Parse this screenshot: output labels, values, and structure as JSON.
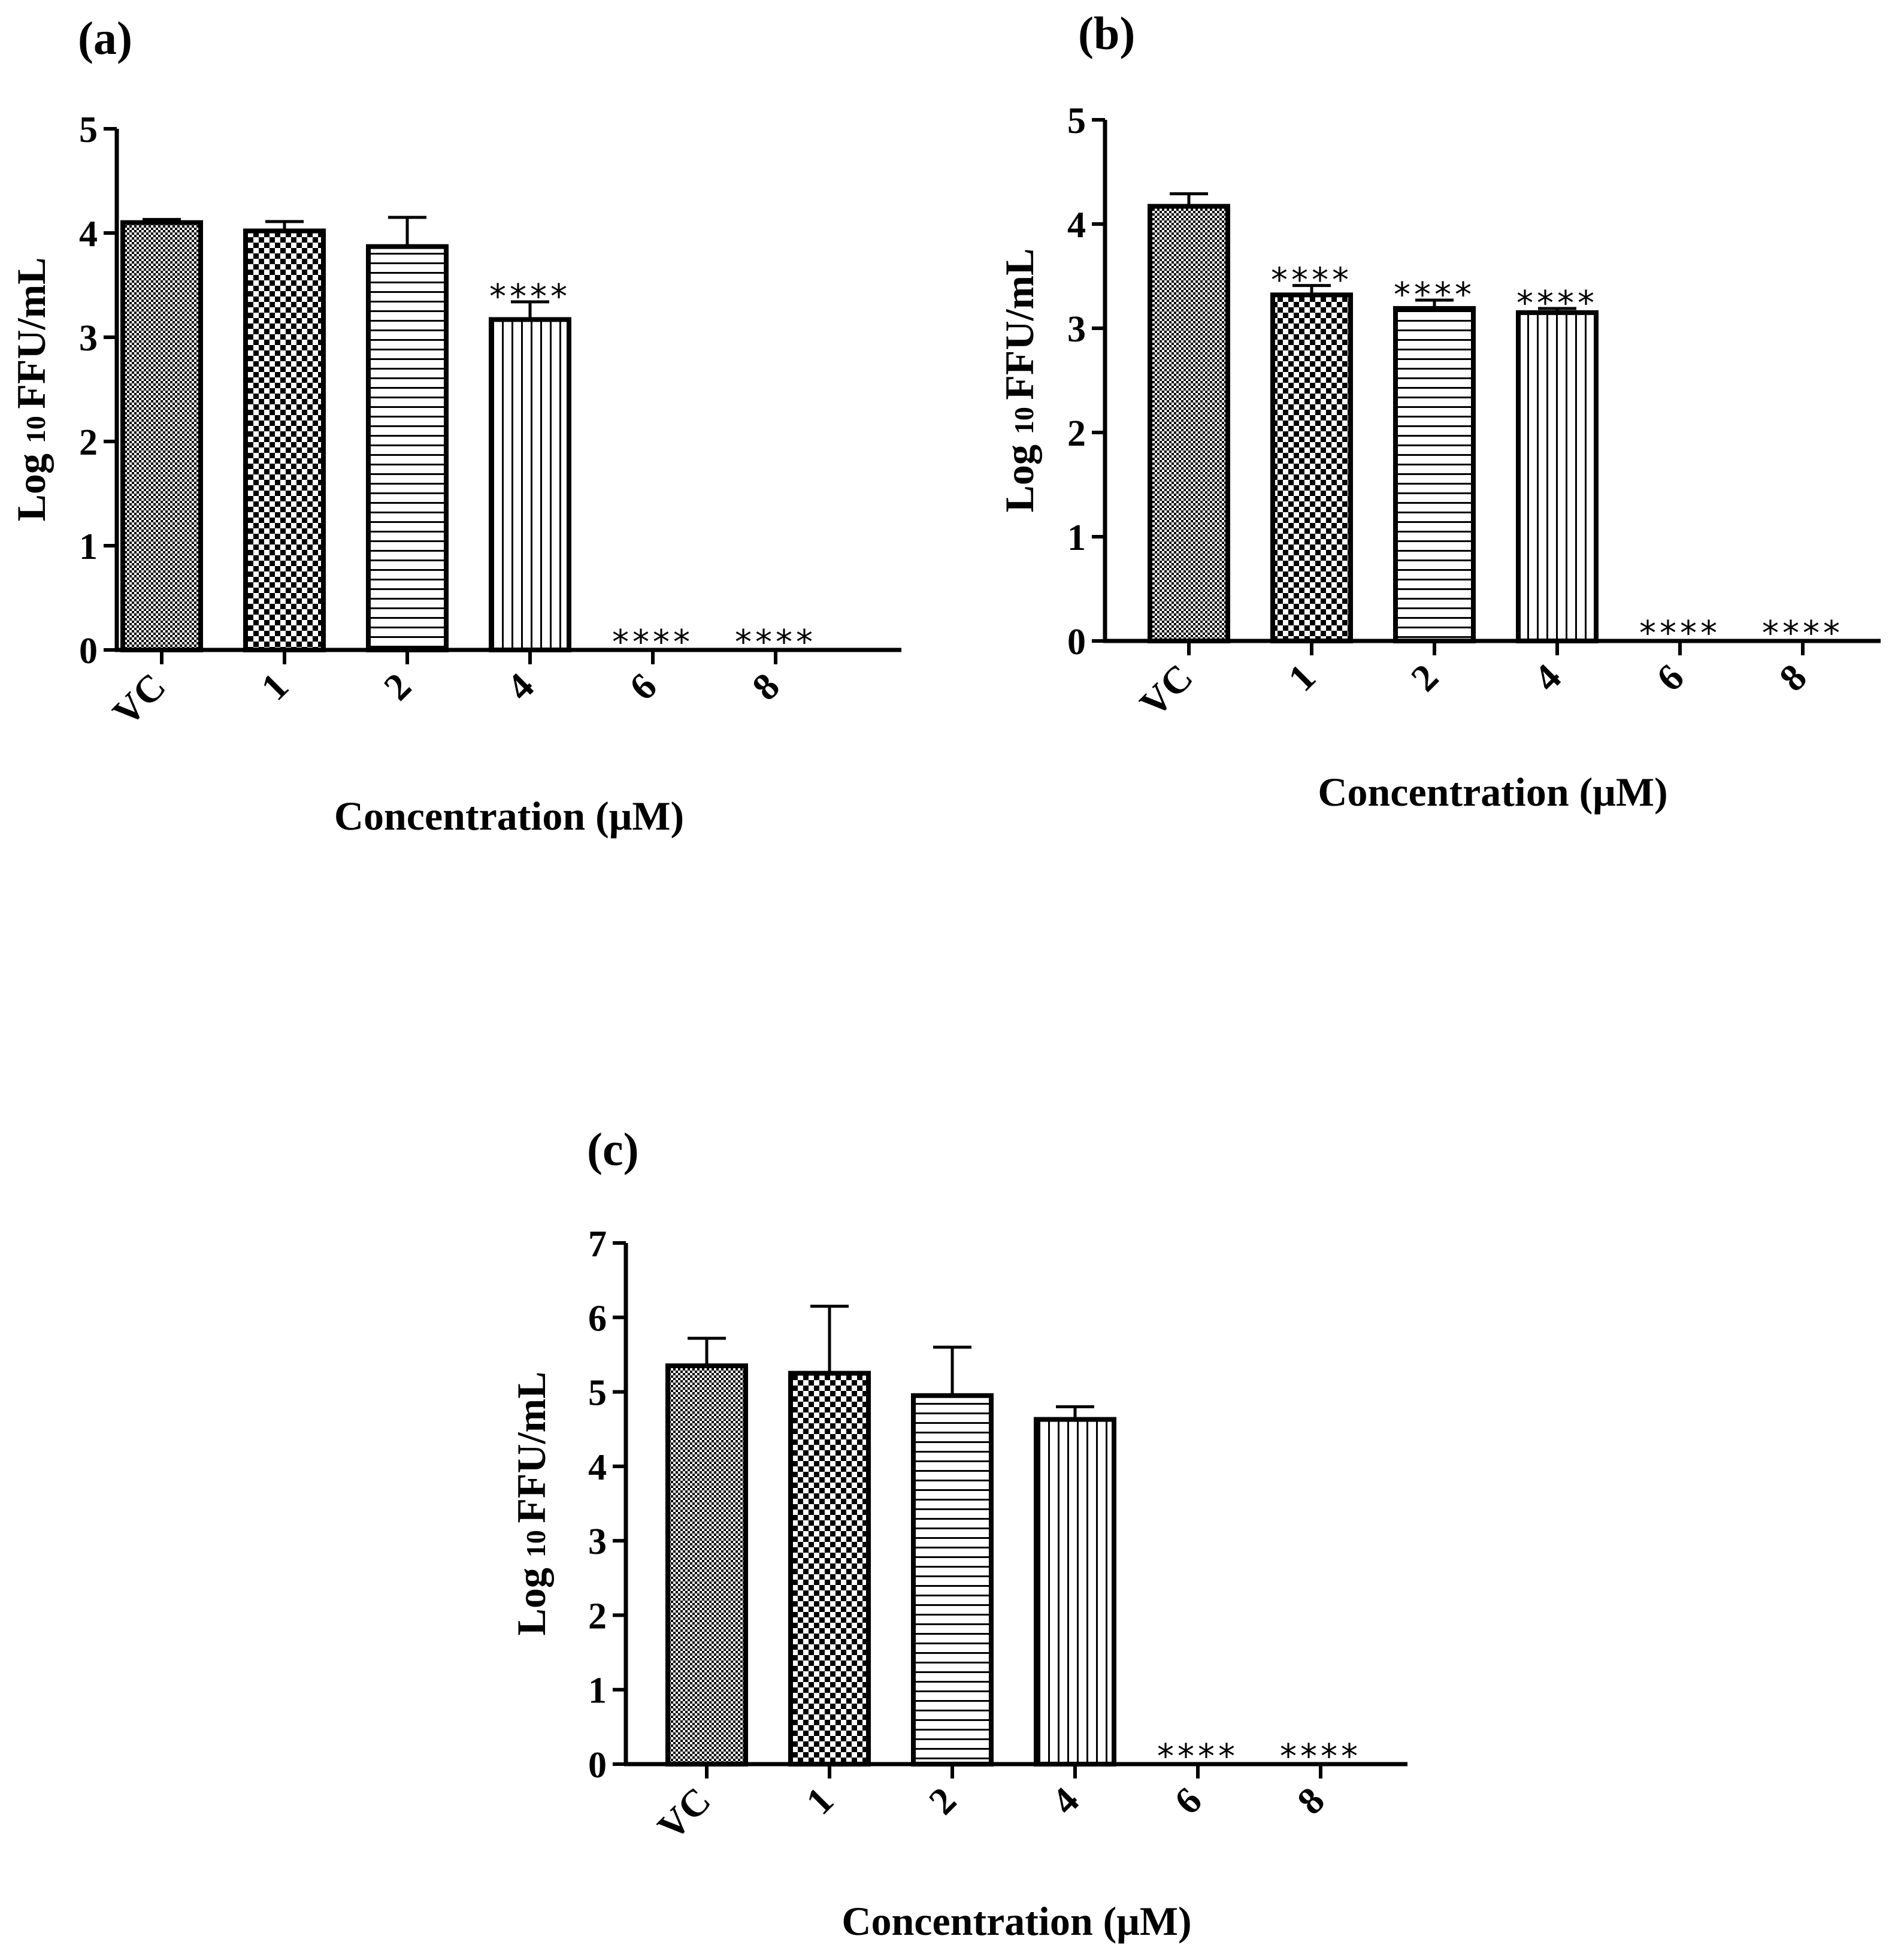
{
  "chart_data": [
    {
      "panel_label": "(a)",
      "type": "bar",
      "categories": [
        "VC",
        "1",
        "2",
        "4",
        "6",
        "8"
      ],
      "values": [
        4.1,
        4.02,
        3.87,
        3.17,
        0,
        0
      ],
      "errors": [
        0.03,
        0.09,
        0.28,
        0.17,
        0,
        0
      ],
      "significance": [
        "",
        "",
        "",
        "****",
        "****",
        "****"
      ],
      "patterns": [
        "fine-checker",
        "checker",
        "horizontal",
        "vertical",
        "none",
        "none"
      ],
      "xlabel": "Concentration (μM)",
      "ylabel_main": "Log",
      "ylabel_sub": "10",
      "ylabel_tail": "FFU/mL",
      "ylim": [
        0,
        5
      ],
      "yticks": [
        "0",
        "1",
        "2",
        "3",
        "4",
        "5"
      ]
    },
    {
      "panel_label": "(b)",
      "type": "bar",
      "categories": [
        "VC",
        "1",
        "2",
        "4",
        "6",
        "8"
      ],
      "values": [
        4.17,
        3.32,
        3.19,
        3.15,
        0,
        0
      ],
      "errors": [
        0.12,
        0.09,
        0.08,
        0.04,
        0,
        0
      ],
      "significance": [
        "",
        "****",
        "****",
        "****",
        "****",
        "****"
      ],
      "patterns": [
        "fine-checker",
        "checker",
        "horizontal",
        "vertical",
        "none",
        "none"
      ],
      "xlabel": "Concentration (μM)",
      "ylabel_main": "Log",
      "ylabel_sub": "10",
      "ylabel_tail": "FFU/mL",
      "ylim": [
        0,
        5
      ],
      "yticks": [
        "0",
        "1",
        "2",
        "3",
        "4",
        "5"
      ]
    },
    {
      "panel_label": "(c)",
      "type": "bar",
      "categories": [
        "VC",
        "1",
        "2",
        "4",
        "6",
        "8"
      ],
      "values": [
        5.35,
        5.25,
        4.95,
        4.63,
        0,
        0
      ],
      "errors": [
        0.37,
        0.9,
        0.65,
        0.17,
        0,
        0
      ],
      "significance": [
        "",
        "",
        "",
        "",
        "****",
        "****"
      ],
      "patterns": [
        "fine-checker",
        "checker",
        "horizontal",
        "vertical",
        "none",
        "none"
      ],
      "xlabel": "Concentration (μM)",
      "ylabel_main": "Log",
      "ylabel_sub": "10",
      "ylabel_tail": "FFU/mL",
      "ylim": [
        0,
        7
      ],
      "yticks": [
        "0",
        "1",
        "2",
        "3",
        "4",
        "5",
        "6",
        "7"
      ]
    }
  ]
}
